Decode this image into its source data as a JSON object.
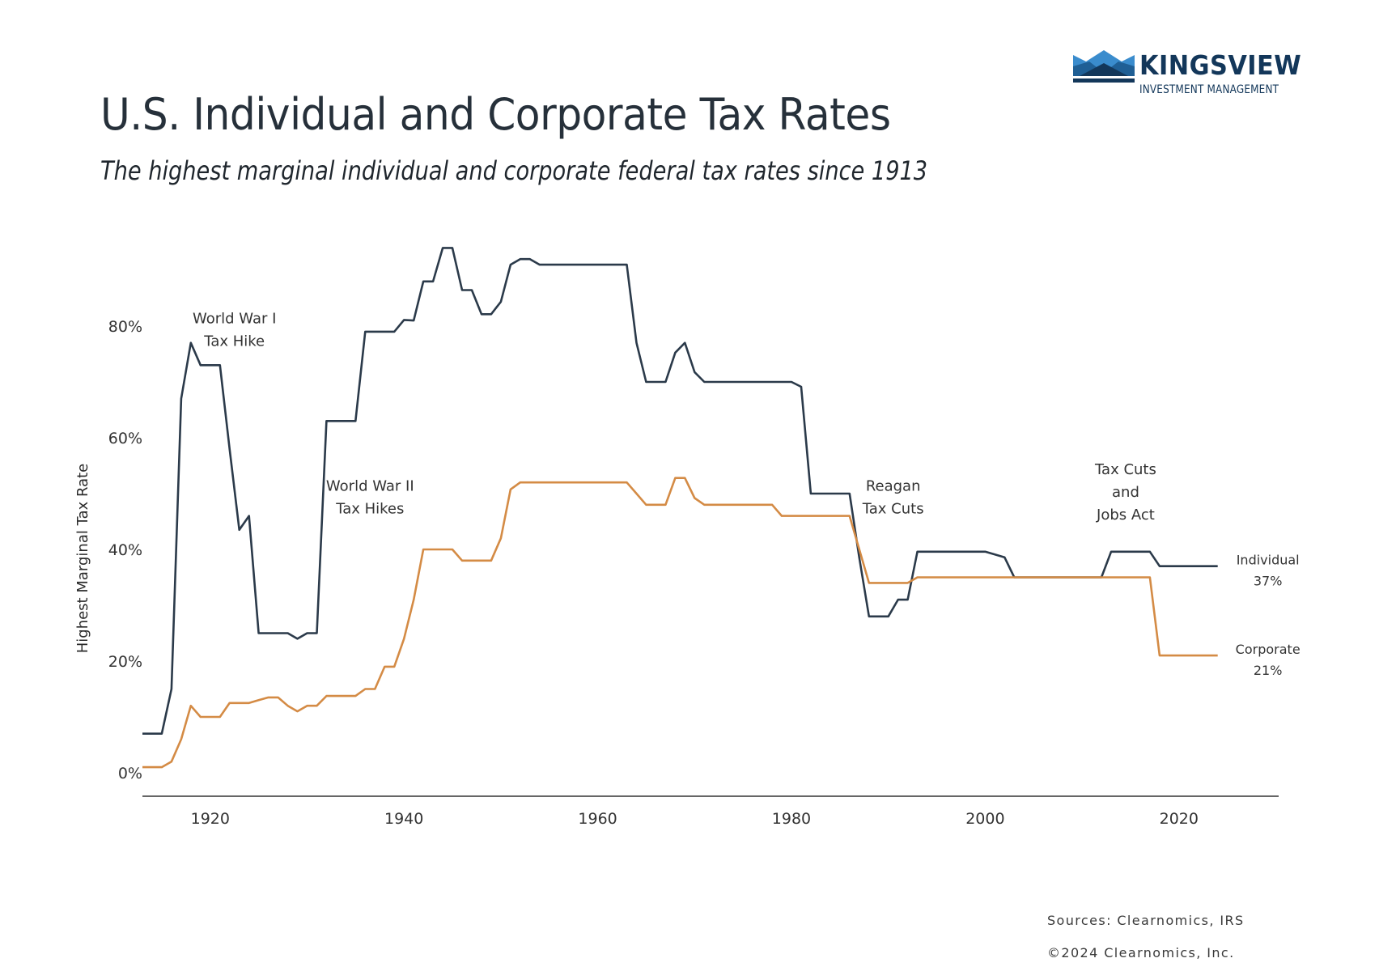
{
  "brand": {
    "name": "KINGSVIEW",
    "tagline": "INVESTMENT MANAGEMENT",
    "colors": {
      "dark": "#13375a",
      "mid": "#1f5f95",
      "light": "#3a8ccd"
    }
  },
  "header": {
    "title": "U.S. Individual and Corporate Tax Rates",
    "subtitle": "The highest marginal individual and corporate federal tax rates since 1913"
  },
  "footer": {
    "sources": "Sources: Clearnomics, IRS",
    "copyright": "©2024 Clearnomics, Inc."
  },
  "chart_data": {
    "type": "line",
    "title": "U.S. Individual and Corporate Tax Rates",
    "subtitle": "The highest marginal individual and corporate federal tax rates since 1913",
    "xlabel": "",
    "ylabel": "Highest Marginal Tax Rate",
    "xlim": [
      1913,
      2030
    ],
    "ylim": [
      0,
      94
    ],
    "x_ticks": [
      1920,
      1940,
      1960,
      1980,
      2000,
      2020
    ],
    "x_tick_labels": [
      "1920",
      "1940",
      "1960",
      "1980",
      "2000",
      "2020"
    ],
    "y_ticks": [
      0,
      20,
      40,
      60,
      80
    ],
    "y_tick_labels": [
      "0%",
      "20%",
      "40%",
      "60%",
      "80%"
    ],
    "grid": false,
    "legend": "inline-right",
    "series": [
      {
        "name": "Individual",
        "end_label": "Individual",
        "end_value_label": "37%",
        "color": "#2b3a4a",
        "points": [
          [
            1913,
            7
          ],
          [
            1915,
            7
          ],
          [
            1916,
            15
          ],
          [
            1917,
            67
          ],
          [
            1918,
            77
          ],
          [
            1919,
            73
          ],
          [
            1920,
            73
          ],
          [
            1921,
            73
          ],
          [
            1922,
            58
          ],
          [
            1923,
            43.5
          ],
          [
            1924,
            46
          ],
          [
            1925,
            25
          ],
          [
            1926,
            25
          ],
          [
            1927,
            25
          ],
          [
            1928,
            25
          ],
          [
            1929,
            24
          ],
          [
            1930,
            25
          ],
          [
            1931,
            25
          ],
          [
            1932,
            63
          ],
          [
            1933,
            63
          ],
          [
            1934,
            63
          ],
          [
            1935,
            63
          ],
          [
            1936,
            79
          ],
          [
            1937,
            79
          ],
          [
            1938,
            79
          ],
          [
            1939,
            79
          ],
          [
            1940,
            81.1
          ],
          [
            1941,
            81
          ],
          [
            1942,
            88
          ],
          [
            1943,
            88
          ],
          [
            1944,
            94
          ],
          [
            1945,
            94
          ],
          [
            1946,
            86.45
          ],
          [
            1947,
            86.45
          ],
          [
            1948,
            82.13
          ],
          [
            1949,
            82.13
          ],
          [
            1950,
            84.36
          ],
          [
            1951,
            91
          ],
          [
            1952,
            92
          ],
          [
            1953,
            92
          ],
          [
            1954,
            91
          ],
          [
            1955,
            91
          ],
          [
            1956,
            91
          ],
          [
            1957,
            91
          ],
          [
            1958,
            91
          ],
          [
            1959,
            91
          ],
          [
            1960,
            91
          ],
          [
            1961,
            91
          ],
          [
            1962,
            91
          ],
          [
            1963,
            91
          ],
          [
            1964,
            77
          ],
          [
            1965,
            70
          ],
          [
            1966,
            70
          ],
          [
            1967,
            70
          ],
          [
            1968,
            75.25
          ],
          [
            1969,
            77
          ],
          [
            1970,
            71.75
          ],
          [
            1971,
            70
          ],
          [
            1972,
            70
          ],
          [
            1973,
            70
          ],
          [
            1974,
            70
          ],
          [
            1975,
            70
          ],
          [
            1976,
            70
          ],
          [
            1977,
            70
          ],
          [
            1978,
            70
          ],
          [
            1979,
            70
          ],
          [
            1980,
            70
          ],
          [
            1981,
            69.13
          ],
          [
            1982,
            50
          ],
          [
            1983,
            50
          ],
          [
            1984,
            50
          ],
          [
            1985,
            50
          ],
          [
            1986,
            50
          ],
          [
            1987,
            38.5
          ],
          [
            1988,
            28
          ],
          [
            1989,
            28
          ],
          [
            1990,
            28
          ],
          [
            1991,
            31
          ],
          [
            1992,
            31
          ],
          [
            1993,
            39.6
          ],
          [
            1994,
            39.6
          ],
          [
            1995,
            39.6
          ],
          [
            1996,
            39.6
          ],
          [
            1997,
            39.6
          ],
          [
            1998,
            39.6
          ],
          [
            1999,
            39.6
          ],
          [
            2000,
            39.6
          ],
          [
            2001,
            39.1
          ],
          [
            2002,
            38.6
          ],
          [
            2003,
            35
          ],
          [
            2004,
            35
          ],
          [
            2005,
            35
          ],
          [
            2006,
            35
          ],
          [
            2007,
            35
          ],
          [
            2008,
            35
          ],
          [
            2009,
            35
          ],
          [
            2010,
            35
          ],
          [
            2011,
            35
          ],
          [
            2012,
            35
          ],
          [
            2013,
            39.6
          ],
          [
            2014,
            39.6
          ],
          [
            2015,
            39.6
          ],
          [
            2016,
            39.6
          ],
          [
            2017,
            39.6
          ],
          [
            2018,
            37
          ],
          [
            2019,
            37
          ],
          [
            2020,
            37
          ],
          [
            2021,
            37
          ],
          [
            2022,
            37
          ],
          [
            2023,
            37
          ],
          [
            2024,
            37
          ]
        ]
      },
      {
        "name": "Corporate",
        "end_label": "Corporate",
        "end_value_label": "21%",
        "color": "#d48b45",
        "points": [
          [
            1913,
            1
          ],
          [
            1915,
            1
          ],
          [
            1916,
            2
          ],
          [
            1917,
            6
          ],
          [
            1918,
            12
          ],
          [
            1919,
            10
          ],
          [
            1920,
            10
          ],
          [
            1921,
            10
          ],
          [
            1922,
            12.5
          ],
          [
            1923,
            12.5
          ],
          [
            1924,
            12.5
          ],
          [
            1925,
            13
          ],
          [
            1926,
            13.5
          ],
          [
            1927,
            13.5
          ],
          [
            1928,
            12
          ],
          [
            1929,
            11
          ],
          [
            1930,
            12
          ],
          [
            1931,
            12
          ],
          [
            1932,
            13.75
          ],
          [
            1933,
            13.75
          ],
          [
            1934,
            13.75
          ],
          [
            1935,
            13.75
          ],
          [
            1936,
            15
          ],
          [
            1937,
            15
          ],
          [
            1938,
            19
          ],
          [
            1939,
            19
          ],
          [
            1940,
            24
          ],
          [
            1941,
            31
          ],
          [
            1942,
            40
          ],
          [
            1943,
            40
          ],
          [
            1944,
            40
          ],
          [
            1945,
            40
          ],
          [
            1946,
            38
          ],
          [
            1947,
            38
          ],
          [
            1948,
            38
          ],
          [
            1949,
            38
          ],
          [
            1950,
            42
          ],
          [
            1951,
            50.75
          ],
          [
            1952,
            52
          ],
          [
            1953,
            52
          ],
          [
            1954,
            52
          ],
          [
            1955,
            52
          ],
          [
            1956,
            52
          ],
          [
            1957,
            52
          ],
          [
            1958,
            52
          ],
          [
            1959,
            52
          ],
          [
            1960,
            52
          ],
          [
            1961,
            52
          ],
          [
            1962,
            52
          ],
          [
            1963,
            52
          ],
          [
            1964,
            50
          ],
          [
            1965,
            48
          ],
          [
            1966,
            48
          ],
          [
            1967,
            48
          ],
          [
            1968,
            52.8
          ],
          [
            1969,
            52.8
          ],
          [
            1970,
            49.2
          ],
          [
            1971,
            48
          ],
          [
            1972,
            48
          ],
          [
            1973,
            48
          ],
          [
            1974,
            48
          ],
          [
            1975,
            48
          ],
          [
            1976,
            48
          ],
          [
            1977,
            48
          ],
          [
            1978,
            48
          ],
          [
            1979,
            46
          ],
          [
            1980,
            46
          ],
          [
            1981,
            46
          ],
          [
            1982,
            46
          ],
          [
            1983,
            46
          ],
          [
            1984,
            46
          ],
          [
            1985,
            46
          ],
          [
            1986,
            46
          ],
          [
            1987,
            40
          ],
          [
            1988,
            34
          ],
          [
            1989,
            34
          ],
          [
            1990,
            34
          ],
          [
            1991,
            34
          ],
          [
            1992,
            34
          ],
          [
            1993,
            35
          ],
          [
            1994,
            35
          ],
          [
            1995,
            35
          ],
          [
            1996,
            35
          ],
          [
            1997,
            35
          ],
          [
            1998,
            35
          ],
          [
            1999,
            35
          ],
          [
            2000,
            35
          ],
          [
            2001,
            35
          ],
          [
            2002,
            35
          ],
          [
            2003,
            35
          ],
          [
            2004,
            35
          ],
          [
            2005,
            35
          ],
          [
            2006,
            35
          ],
          [
            2007,
            35
          ],
          [
            2008,
            35
          ],
          [
            2009,
            35
          ],
          [
            2010,
            35
          ],
          [
            2011,
            35
          ],
          [
            2012,
            35
          ],
          [
            2013,
            35
          ],
          [
            2014,
            35
          ],
          [
            2015,
            35
          ],
          [
            2016,
            35
          ],
          [
            2017,
            35
          ],
          [
            2018,
            21
          ],
          [
            2019,
            21
          ],
          [
            2020,
            21
          ],
          [
            2021,
            21
          ],
          [
            2022,
            21
          ],
          [
            2023,
            21
          ],
          [
            2024,
            21
          ]
        ]
      }
    ],
    "annotations": [
      {
        "lines": [
          "World War I",
          "Tax Hike"
        ],
        "x": 1922.5,
        "y": 80.5
      },
      {
        "lines": [
          "World War II",
          "Tax Hikes"
        ],
        "x": 1936.5,
        "y": 50.5
      },
      {
        "lines": [
          "Reagan",
          "Tax Cuts"
        ],
        "x": 1990.5,
        "y": 50.5
      },
      {
        "lines": [
          "Tax Cuts",
          "and",
          "Jobs Act"
        ],
        "x": 2014.5,
        "y": 53.5
      }
    ]
  }
}
